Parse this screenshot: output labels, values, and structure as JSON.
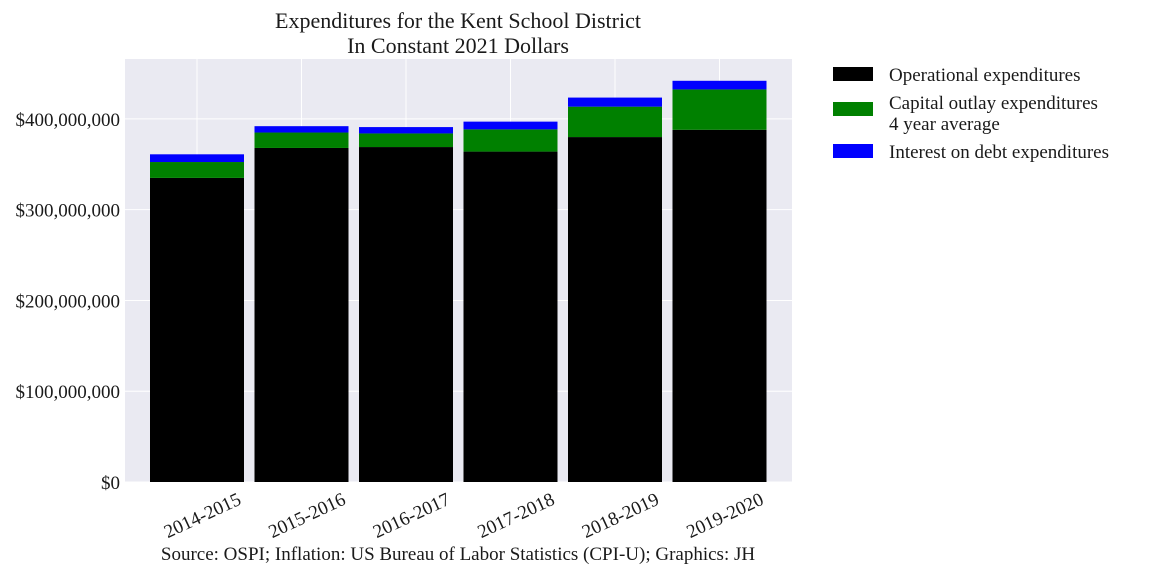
{
  "chart_data": {
    "type": "bar",
    "stacked": true,
    "title": "Expenditures for the Kent School District",
    "subtitle": "In Constant 2021 Dollars",
    "xlabel": "",
    "ylabel": "",
    "caption": "Source: OSPI; Inflation: US Bureau of Labor Statistics (CPI-U); Graphics: JH",
    "categories": [
      "2014-2015",
      "2015-2016",
      "2016-2017",
      "2017-2018",
      "2018-2019",
      "2019-2020"
    ],
    "series": [
      {
        "name": "Operational expenditures",
        "color": "#000000",
        "values": [
          335000000,
          368000000,
          369000000,
          364000000,
          380000000,
          388000000
        ]
      },
      {
        "name": "Capital outlay expenditures\n4 year average",
        "color": "#008000",
        "values": [
          17500000,
          17000000,
          15000000,
          24500000,
          33500000,
          44500000
        ]
      },
      {
        "name": "Interest on debt expenditures",
        "color": "#0000ff",
        "values": [
          8500000,
          7000000,
          7000000,
          8500000,
          10000000,
          9500000
        ]
      }
    ],
    "ylim": [
      0,
      466000000
    ],
    "yticks": [
      0,
      100000000,
      200000000,
      300000000,
      400000000
    ],
    "ytick_labels": [
      "$0",
      "$100,000,000",
      "$200,000,000",
      "$300,000,000",
      "$400,000,000"
    ],
    "grid": true,
    "legend_position": "outside-right-top",
    "plot_background": "#eaeaf2"
  }
}
